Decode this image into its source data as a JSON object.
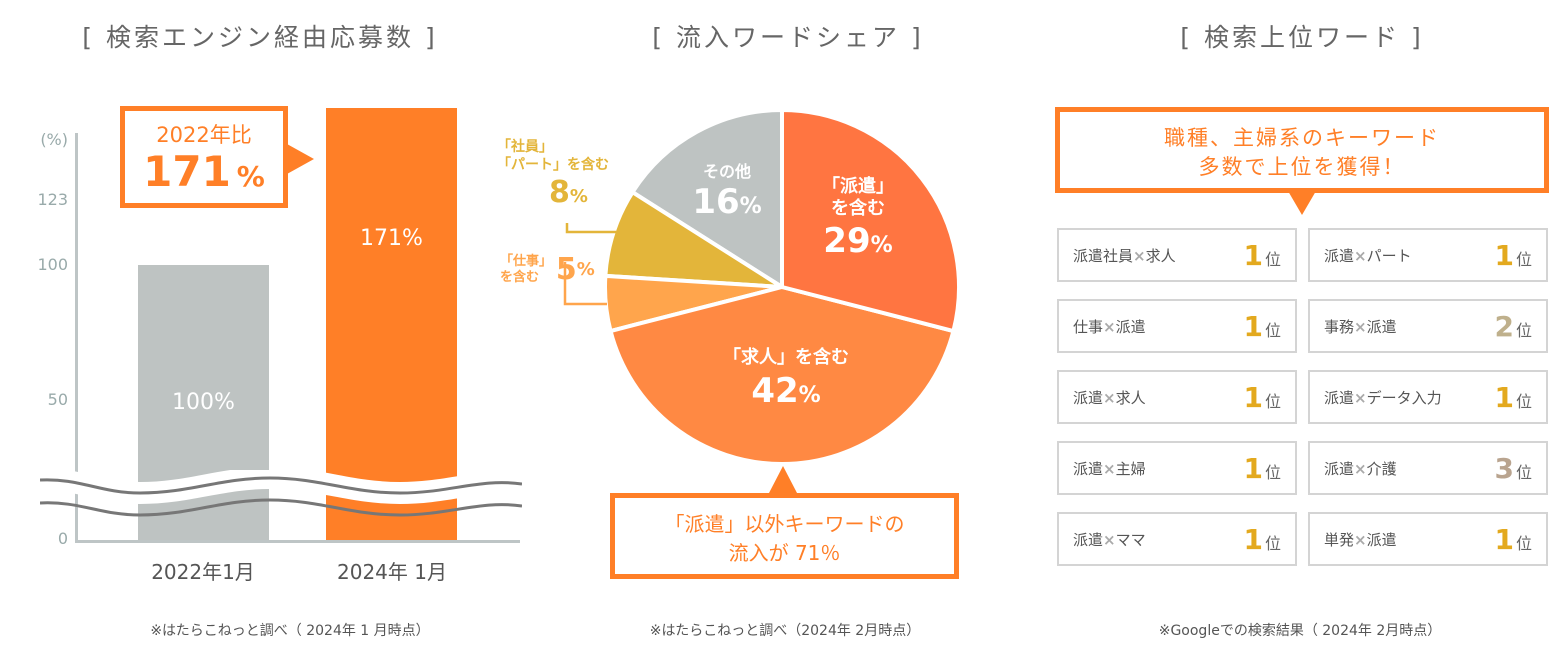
{
  "chart_data": [
    {
      "type": "bar",
      "title": "[ 検索エンジン経由応募数 ]",
      "ylabel": "(%)",
      "yticks": [
        "0",
        "50",
        "100",
        "123"
      ],
      "categories": [
        "2022年1月",
        "2024年 1月"
      ],
      "values": [
        100,
        171
      ],
      "value_labels": [
        "100%",
        "171%"
      ],
      "colors": [
        "#BEC3C2",
        "#FF7F27"
      ],
      "axis_break": true,
      "callout": {
        "line1": "2022年比",
        "value": "171",
        "unit": "%"
      },
      "footnote": "※はたらこねっと調べ（ 2024年 1 月時点）"
    },
    {
      "type": "pie",
      "title": "[ 流入ワードシェア ]",
      "slices": [
        {
          "label": "「派遣」を含む",
          "label_lines": [
            "「派遣」",
            "を含む"
          ],
          "value": 29,
          "pct": "29",
          "color": "#FF7541"
        },
        {
          "label": "「求人」を含む",
          "label_lines": [
            "「求人」を含む"
          ],
          "value": 42,
          "pct": "42",
          "color": "#FF8943"
        },
        {
          "label": "「仕事」を含む",
          "label_lines": [
            "「仕事」",
            "を含む"
          ],
          "value": 5,
          "pct": "5",
          "color": "#FFA54C"
        },
        {
          "label": "「社員」「パート」を含む",
          "label_lines": [
            "「社員」",
            "「パート」を含む"
          ],
          "value": 8,
          "pct": "8",
          "color": "#E3B53A"
        },
        {
          "label": "その他",
          "label_lines": [
            "その他"
          ],
          "value": 16,
          "pct": "16",
          "color": "#BEC3C2"
        }
      ],
      "percent_sign": "%",
      "callout": {
        "line1": "「派遣」以外キーワードの",
        "line2": "流入が 71％"
      },
      "footnote": "※はたらこねっと調べ（2024年 2月時点）"
    }
  ],
  "ranking": {
    "title": "[ 検索上位ワード ]",
    "callout": {
      "line1": "職種、主婦系のキーワード",
      "line2": "多数で上位を獲得！"
    },
    "rank_unit": "位",
    "items": [
      {
        "keyword": "派遣社員",
        "keyword2": "求人",
        "rank": "1"
      },
      {
        "keyword": "派遣",
        "keyword2": "パート",
        "rank": "1"
      },
      {
        "keyword": "仕事",
        "keyword2": "派遣",
        "rank": "1"
      },
      {
        "keyword": "事務",
        "keyword2": "派遣",
        "rank": "2"
      },
      {
        "keyword": "派遣",
        "keyword2": "求人",
        "rank": "1"
      },
      {
        "keyword": "派遣",
        "keyword2": "データ入力",
        "rank": "1"
      },
      {
        "keyword": "派遣",
        "keyword2": "主婦",
        "rank": "1"
      },
      {
        "keyword": "派遣",
        "keyword2": "介護",
        "rank": "3"
      },
      {
        "keyword": "派遣",
        "keyword2": "ママ",
        "rank": "1"
      },
      {
        "keyword": "単発",
        "keyword2": "派遣",
        "rank": "1"
      }
    ],
    "times": "×",
    "rank_colors": {
      "1": "#E3A91E",
      "2": "#BFB08C",
      "3": "#B9A48F"
    },
    "footnote": "※Googleでの検索結果（ 2024年 2月時点）"
  }
}
